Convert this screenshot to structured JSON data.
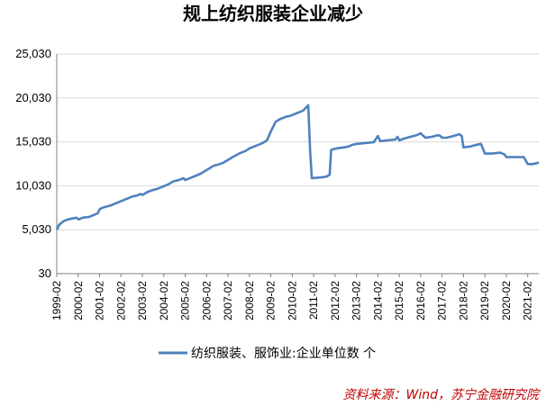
{
  "chart_data": {
    "type": "line",
    "title": "规上纺织服装企业减少",
    "xlabel": "",
    "ylabel": "",
    "ylim": [
      30,
      25030
    ],
    "y_ticks": [
      "25,030",
      "20,030",
      "15,030",
      "10,030",
      "5,030",
      "30"
    ],
    "y_tick_values": [
      25030,
      20030,
      15030,
      10030,
      5030,
      30
    ],
    "x_ticks": [
      "1999-02",
      "2000-02",
      "2001-02",
      "2002-02",
      "2003-02",
      "2004-02",
      "2005-02",
      "2006-02",
      "2007-02",
      "2008-02",
      "2009-02",
      "2010-02",
      "2011-02",
      "2012-02",
      "2013-02",
      "2014-02",
      "2015-02",
      "2016-02",
      "2017-02",
      "2018-02",
      "2019-02",
      "2020-02",
      "2021-02"
    ],
    "x_tick_values": [
      1999.083,
      2000.083,
      2001.083,
      2002.083,
      2003.083,
      2004.083,
      2005.083,
      2006.083,
      2007.083,
      2008.083,
      2009.083,
      2010.083,
      2011.083,
      2012.083,
      2013.083,
      2014.083,
      2015.083,
      2016.083,
      2017.083,
      2018.083,
      2019.083,
      2020.083,
      2021.083
    ],
    "xlim": [
      1999.083,
      2021.6
    ],
    "legend": "纺织服装、服饰业:企业单位数 个",
    "legend_position": "bottom",
    "grid": "horizontal",
    "series": [
      {
        "name": "纺织服装、服饰业:企业单位数 个",
        "color": "#4f81bd",
        "x": [
          1999.083,
          1999.2,
          1999.4,
          1999.6,
          1999.8,
          2000.0,
          2000.1,
          2000.3,
          2000.6,
          2000.8,
          2001.0,
          2001.1,
          2001.3,
          2001.6,
          2001.8,
          2002.0,
          2002.2,
          2002.4,
          2002.6,
          2002.8,
          2003.0,
          2003.1,
          2003.3,
          2003.5,
          2003.8,
          2004.0,
          2004.3,
          2004.5,
          2004.8,
          2005.0,
          2005.083,
          2005.3,
          2005.6,
          2005.8,
          2006.0,
          2006.2,
          2006.4,
          2006.7,
          2006.9,
          2007.1,
          2007.3,
          2007.6,
          2007.9,
          2008.1,
          2008.4,
          2008.7,
          2008.9,
          2009.1,
          2009.3,
          2009.5,
          2009.8,
          2010.0,
          2010.3,
          2010.6,
          2010.83,
          2010.92,
          2011.0,
          2011.2,
          2011.5,
          2011.7,
          2011.83,
          2011.9,
          2012.0,
          2012.2,
          2012.5,
          2012.7,
          2012.9,
          2013.1,
          2013.5,
          2013.9,
          2014.0,
          2014.083,
          2014.2,
          2014.5,
          2014.9,
          2015.0,
          2015.083,
          2015.3,
          2015.6,
          2015.9,
          2016.0,
          2016.083,
          2016.3,
          2016.6,
          2016.9,
          2017.0,
          2017.083,
          2017.3,
          2017.6,
          2017.9,
          2018.0,
          2018.083,
          2018.4,
          2018.7,
          2018.9,
          2019.083,
          2019.4,
          2019.8,
          2020.0,
          2020.083,
          2020.5,
          2020.9,
          2021.083,
          2021.3,
          2021.5,
          2021.6
        ],
        "values": [
          5030,
          5600,
          6000,
          6200,
          6300,
          6400,
          6200,
          6400,
          6500,
          6700,
          6900,
          7400,
          7600,
          7800,
          8000,
          8200,
          8400,
          8600,
          8800,
          8900,
          9100,
          9000,
          9300,
          9500,
          9700,
          9900,
          10200,
          10500,
          10700,
          10900,
          10700,
          10900,
          11200,
          11400,
          11700,
          12000,
          12300,
          12500,
          12700,
          13000,
          13300,
          13700,
          14000,
          14300,
          14600,
          14900,
          15200,
          16300,
          17300,
          17600,
          17900,
          18000,
          18300,
          18600,
          19200,
          14000,
          10900,
          10950,
          11000,
          11100,
          11300,
          14100,
          14200,
          14300,
          14400,
          14500,
          14700,
          14800,
          14900,
          15000,
          15400,
          15700,
          15100,
          15200,
          15300,
          15600,
          15200,
          15400,
          15600,
          15800,
          15900,
          16000,
          15500,
          15600,
          15800,
          15700,
          15500,
          15500,
          15700,
          15900,
          15700,
          14400,
          14500,
          14700,
          14800,
          13700,
          13700,
          13800,
          13600,
          13300,
          13300,
          13300,
          12500,
          12500,
          12600,
          12700
        ]
      }
    ],
    "source": "资料来源：Wind，苏宁金融研究院"
  }
}
